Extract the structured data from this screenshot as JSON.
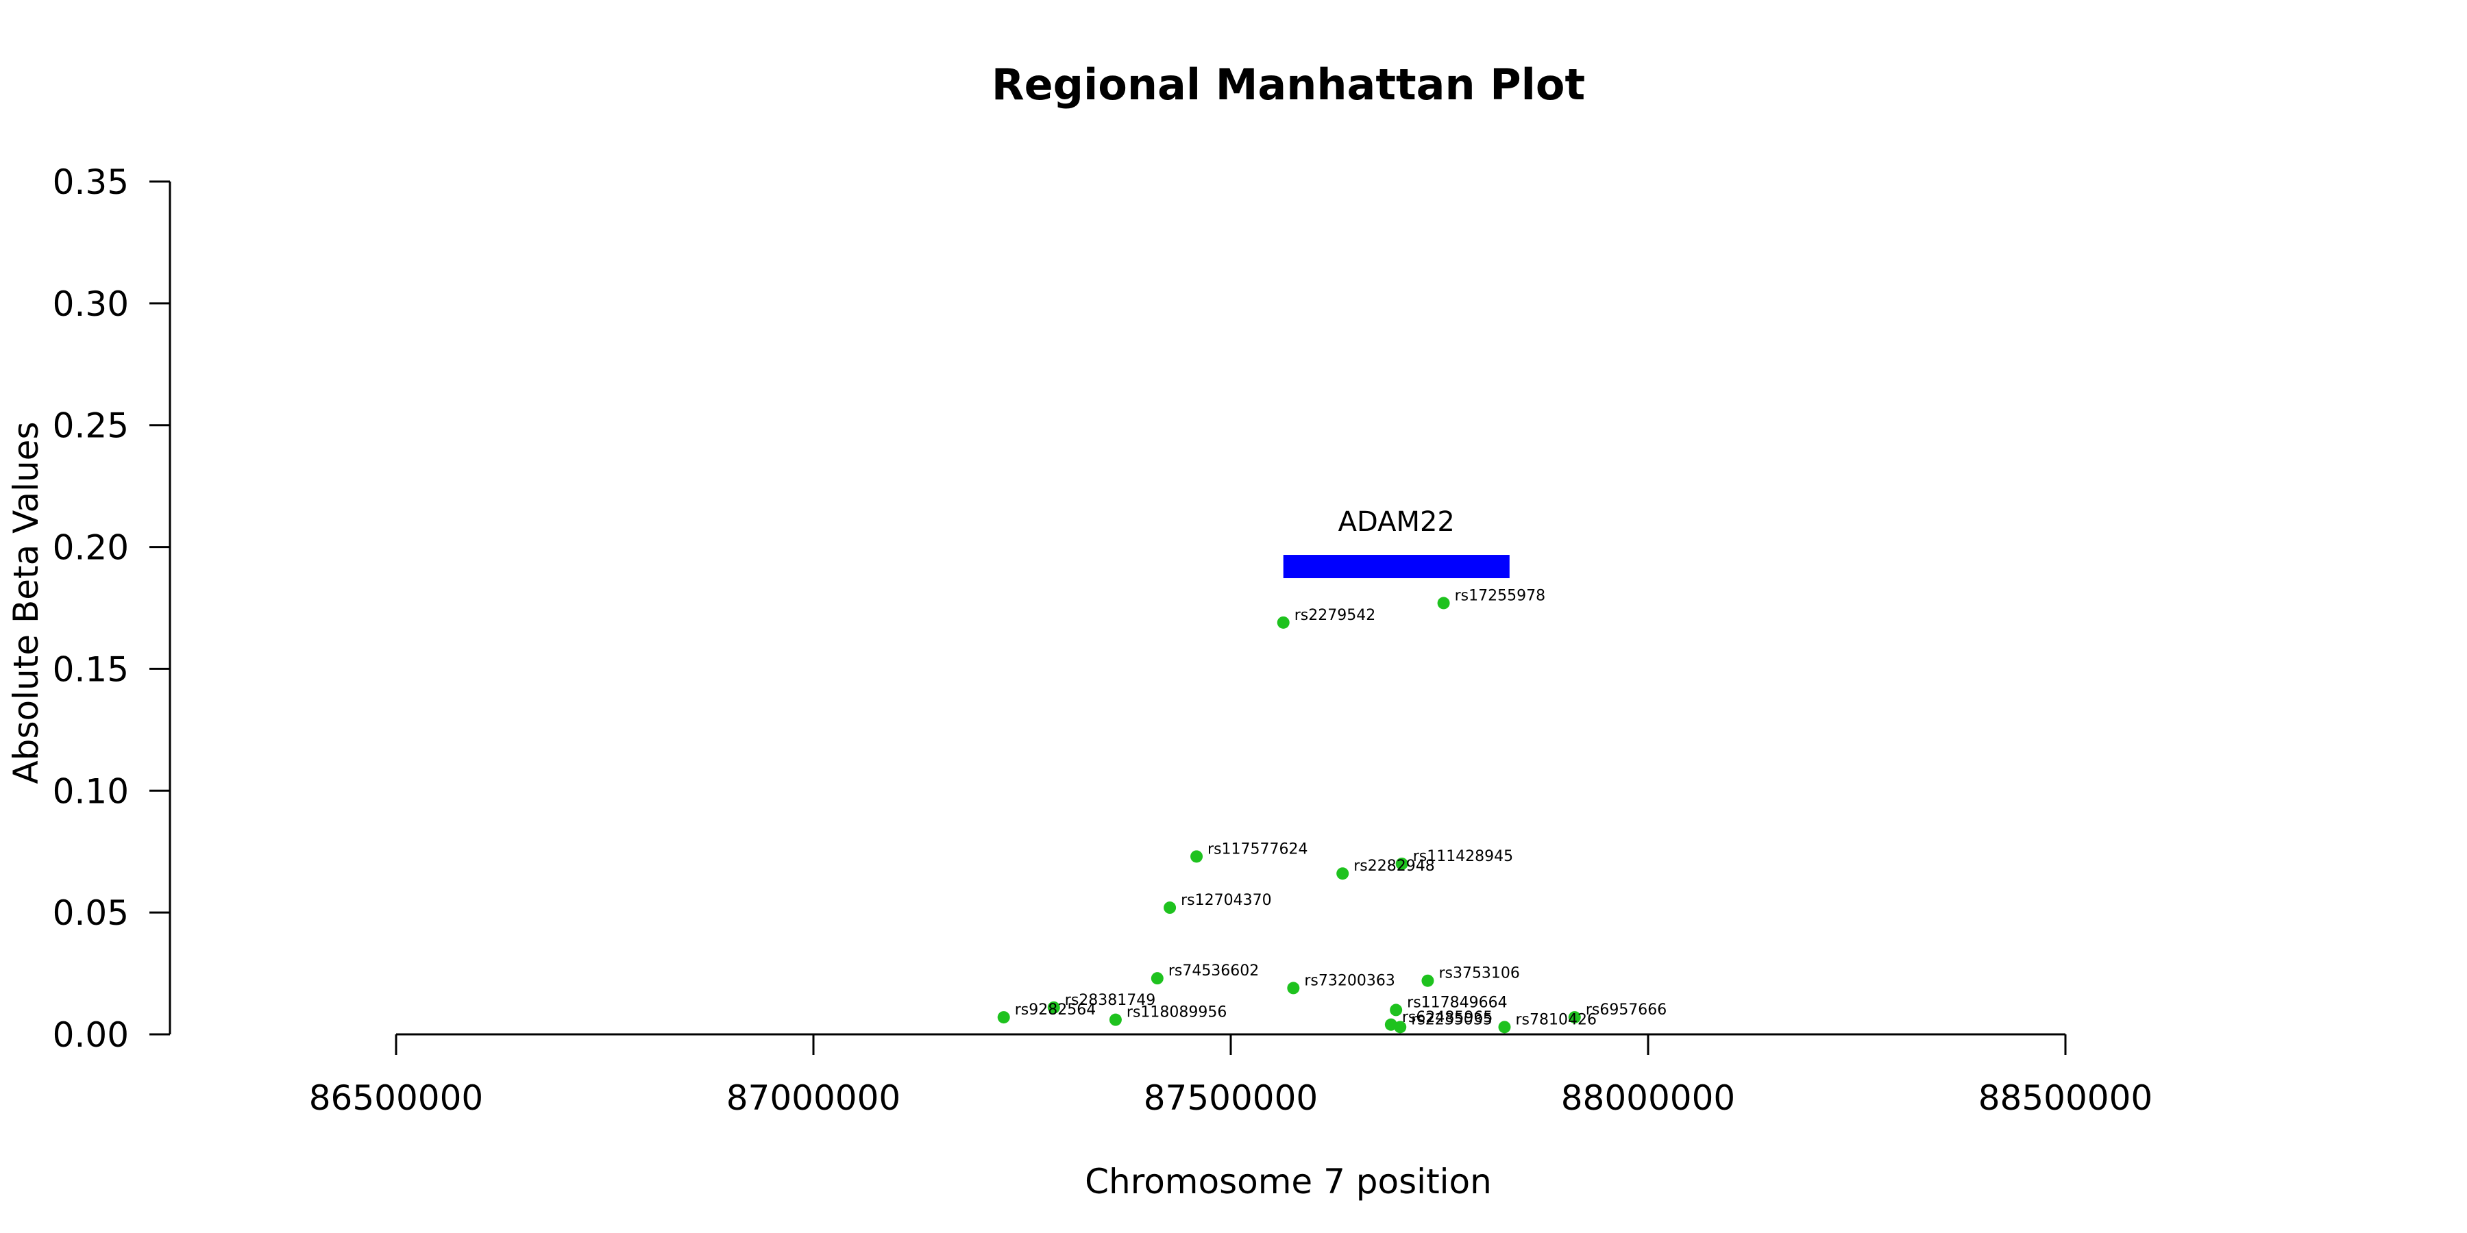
{
  "chart_data": {
    "type": "scatter",
    "title": "Regional Manhattan Plot",
    "xlabel": "Chromosome 7 position",
    "ylabel": "Absolute Beta Values",
    "xlim": [
      86230000,
      88670000
    ],
    "ylim": [
      0,
      0.35
    ],
    "xticks": [
      86500000,
      87000000,
      87500000,
      88000000,
      88500000
    ],
    "yticks": [
      0.0,
      0.05,
      0.1,
      0.15,
      0.2,
      0.25,
      0.3,
      0.35
    ],
    "xtick_labels": [
      "86500000",
      "87000000",
      "87500000",
      "88000000",
      "88500000"
    ],
    "ytick_labels": [
      "0.00",
      "0.05",
      "0.10",
      "0.15",
      "0.20",
      "0.25",
      "0.30",
      "0.35"
    ],
    "grid": false,
    "gene": {
      "name": "ADAM22",
      "start": 87563000,
      "end": 87834000,
      "y": 0.192,
      "color": "#0000ff"
    },
    "point_color": "#1ec21e",
    "points": [
      {
        "snp": "rs2279542",
        "x": 87563000,
        "y": 0.169
      },
      {
        "snp": "rs17255978",
        "x": 87755000,
        "y": 0.177
      },
      {
        "snp": "rs117577624",
        "x": 87459000,
        "y": 0.073
      },
      {
        "snp": "rs111428945",
        "x": 87705000,
        "y": 0.07
      },
      {
        "snp": "rs2282948",
        "x": 87634000,
        "y": 0.066
      },
      {
        "snp": "rs12704370",
        "x": 87427000,
        "y": 0.052
      },
      {
        "snp": "rs74536602",
        "x": 87412000,
        "y": 0.023
      },
      {
        "snp": "rs73200363",
        "x": 87575000,
        "y": 0.019
      },
      {
        "snp": "rs3753106",
        "x": 87736000,
        "y": 0.022
      },
      {
        "snp": "rs117849664",
        "x": 87698000,
        "y": 0.01
      },
      {
        "snp": "rs6957666",
        "x": 87912000,
        "y": 0.007
      },
      {
        "snp": "rs28381749",
        "x": 87288000,
        "y": 0.011
      },
      {
        "snp": "rs9282564",
        "x": 87228000,
        "y": 0.007
      },
      {
        "snp": "rs118089956",
        "x": 87362000,
        "y": 0.006
      },
      {
        "snp": "rs62485965",
        "x": 87692000,
        "y": 0.004
      },
      {
        "snp": "rs2235035",
        "x": 87703000,
        "y": 0.003
      },
      {
        "snp": "rs7810426",
        "x": 87828000,
        "y": 0.003
      }
    ]
  }
}
